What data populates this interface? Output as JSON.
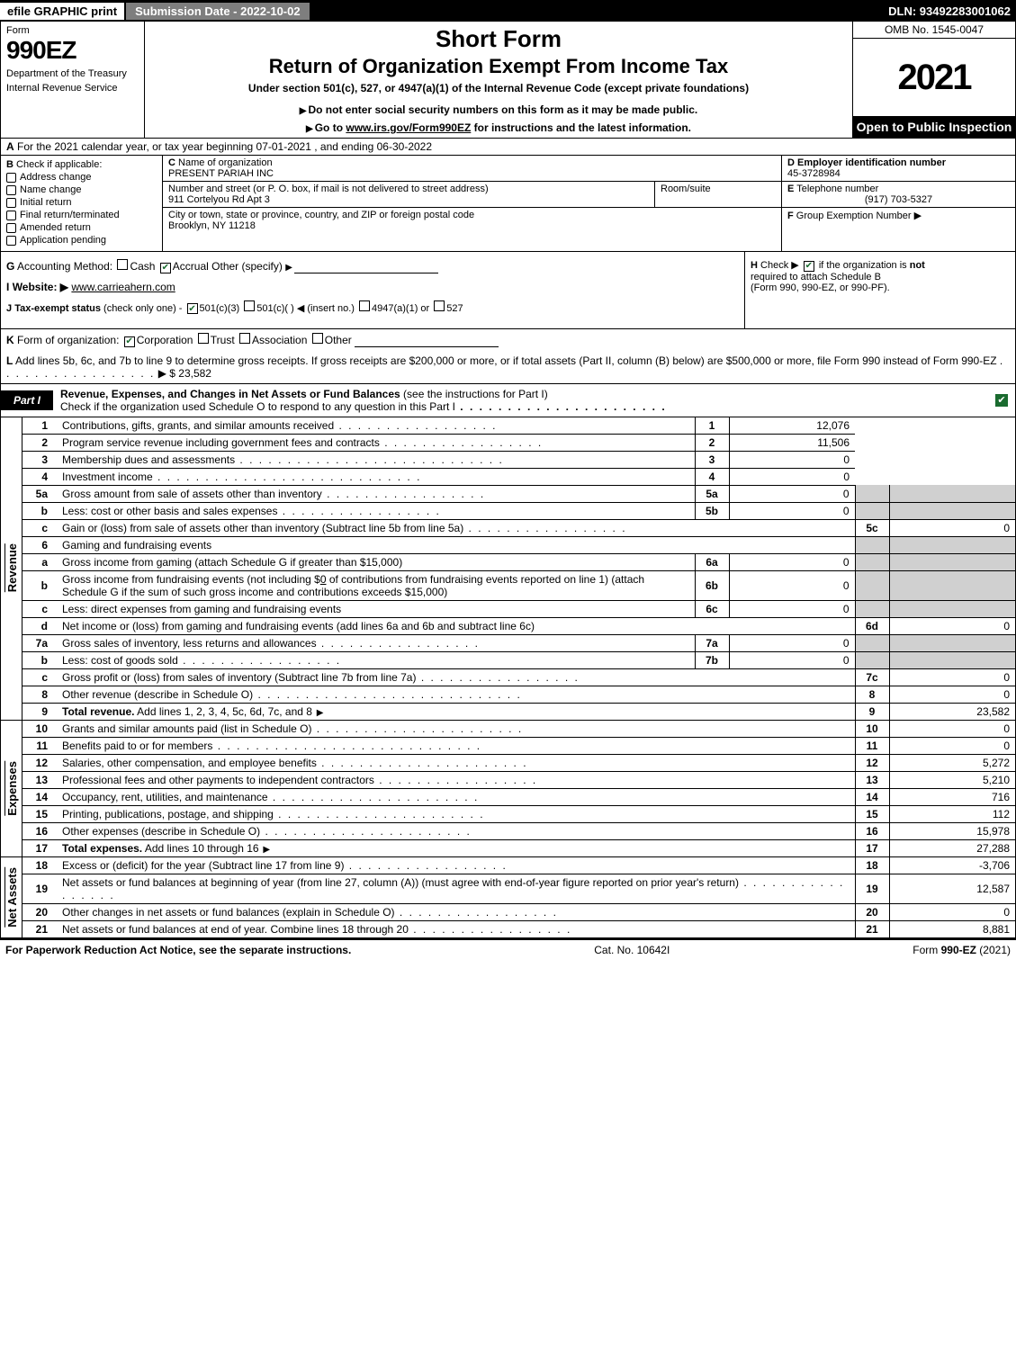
{
  "topbar": {
    "efile": "efile GRAPHIC print",
    "submission": "Submission Date - 2022-10-02",
    "dln": "DLN: 93492283001062"
  },
  "header": {
    "form_label": "Form",
    "form_number": "990EZ",
    "dept1": "Department of the Treasury",
    "dept2": "Internal Revenue Service",
    "short_form": "Short Form",
    "return_title": "Return of Organization Exempt From Income Tax",
    "under_section": "Under section 501(c), 527, or 4947(a)(1) of the Internal Revenue Code (except private foundations)",
    "do_not": "Do not enter social security numbers on this form as it may be made public.",
    "goto_pre": "Go to ",
    "goto_link": "www.irs.gov/Form990EZ",
    "goto_post": " for instructions and the latest information.",
    "omb": "OMB No. 1545-0047",
    "year": "2021",
    "open_to": "Open to Public Inspection"
  },
  "sectionA": {
    "label_A": "A",
    "text": "For the 2021 calendar year, or tax year beginning 07-01-2021 , and ending 06-30-2022"
  },
  "sectionB": {
    "label": "B",
    "check_if": "Check if applicable:",
    "items": [
      "Address change",
      "Name change",
      "Initial return",
      "Final return/terminated",
      "Amended return",
      "Application pending"
    ]
  },
  "sectionC": {
    "label": "C",
    "name_label": "Name of organization",
    "name": "PRESENT PARIAH INC",
    "street_label": "Number and street (or P. O. box, if mail is not delivered to street address)",
    "room_label": "Room/suite",
    "street": "911 Cortelyou Rd Apt 3",
    "city_label": "City or town, state or province, country, and ZIP or foreign postal code",
    "city": "Brooklyn, NY  11218"
  },
  "sectionD": {
    "label": "D",
    "title": "Employer identification number",
    "value": "45-3728984"
  },
  "sectionE": {
    "label": "E",
    "title": "Telephone number",
    "value": "(917) 703-5327"
  },
  "sectionF": {
    "label": "F",
    "title": "Group Exemption Number",
    "arrow": "▶"
  },
  "sectionG": {
    "label": "G",
    "text": "Accounting Method:",
    "opts": [
      "Cash",
      "Accrual",
      "Other (specify)"
    ],
    "checked": "Accrual"
  },
  "sectionH": {
    "label": "H",
    "text1": "Check ▶",
    "text2": "if the organization is ",
    "not": "not",
    "text3": "required to attach Schedule B",
    "text4": "(Form 990, 990-EZ, or 990-PF)."
  },
  "sectionI": {
    "label": "I",
    "title": "Website: ▶",
    "value": "www.carrieahern.com"
  },
  "sectionJ": {
    "label": "J",
    "title": "Tax-exempt status",
    "subtitle": "(check only one) -",
    "opts": [
      "501(c)(3)",
      "501(c)(   ) ◀ (insert no.)",
      "4947(a)(1) or",
      "527"
    ],
    "checked": "501(c)(3)"
  },
  "sectionK": {
    "label": "K",
    "title": "Form of organization:",
    "opts": [
      "Corporation",
      "Trust",
      "Association",
      "Other"
    ],
    "checked": "Corporation"
  },
  "sectionL": {
    "label": "L",
    "text": "Add lines 5b, 6c, and 7b to line 9 to determine gross receipts. If gross receipts are $200,000 or more, or if total assets (Part II, column (B) below) are $500,000 or more, file Form 990 instead of Form 990-EZ",
    "value": "$ 23,582"
  },
  "part1": {
    "tab": "Part I",
    "title": "Revenue, Expenses, and Changes in Net Assets or Fund Balances",
    "subtitle": "(see the instructions for Part I)",
    "check_text": "Check if the organization used Schedule O to respond to any question in this Part I"
  },
  "vert_labels": {
    "revenue": "Revenue",
    "expenses": "Expenses",
    "net_assets": "Net Assets"
  },
  "revenue": [
    {
      "no": "1",
      "desc": "Contributions, gifts, grants, and similar amounts received",
      "numcol": "1",
      "val": "12,076"
    },
    {
      "no": "2",
      "desc": "Program service revenue including government fees and contracts",
      "numcol": "2",
      "val": "11,506"
    },
    {
      "no": "3",
      "desc": "Membership dues and assessments",
      "numcol": "3",
      "val": "0"
    },
    {
      "no": "4",
      "desc": "Investment income",
      "numcol": "4",
      "val": "0"
    }
  ],
  "line5": {
    "a_no": "5a",
    "a_desc": "Gross amount from sale of assets other than inventory",
    "a_sub": "5a",
    "a_val": "0",
    "b_no": "b",
    "b_desc": "Less: cost or other basis and sales expenses",
    "b_sub": "5b",
    "b_val": "0",
    "c_no": "c",
    "c_desc": "Gain or (loss) from sale of assets other than inventory (Subtract line 5b from line 5a)",
    "c_numcol": "5c",
    "c_val": "0"
  },
  "line6": {
    "header_no": "6",
    "header_desc": "Gaming and fundraising events",
    "a_no": "a",
    "a_desc": "Gross income from gaming (attach Schedule G if greater than $15,000)",
    "a_sub": "6a",
    "a_val": "0",
    "b_no": "b",
    "b_desc_pre": "Gross income from fundraising events (not including $",
    "b_fill": "0",
    "b_desc_mid": "of contributions from fundraising events reported on line 1) (attach Schedule G if the sum of such gross income and contributions exceeds $15,000)",
    "b_sub": "6b",
    "b_val": "0",
    "c_no": "c",
    "c_desc": "Less: direct expenses from gaming and fundraising events",
    "c_sub": "6c",
    "c_val": "0",
    "d_no": "d",
    "d_desc": "Net income or (loss) from gaming and fundraising events (add lines 6a and 6b and subtract line 6c)",
    "d_numcol": "6d",
    "d_val": "0"
  },
  "line7": {
    "a_no": "7a",
    "a_desc": "Gross sales of inventory, less returns and allowances",
    "a_sub": "7a",
    "a_val": "0",
    "b_no": "b",
    "b_desc": "Less: cost of goods sold",
    "b_sub": "7b",
    "b_val": "0",
    "c_no": "c",
    "c_desc": "Gross profit or (loss) from sales of inventory (Subtract line 7b from line 7a)",
    "c_numcol": "7c",
    "c_val": "0"
  },
  "line8": {
    "no": "8",
    "desc": "Other revenue (describe in Schedule O)",
    "numcol": "8",
    "val": "0"
  },
  "line9": {
    "no": "9",
    "desc": "Total revenue.",
    "desc2": "Add lines 1, 2, 3, 4, 5c, 6d, 7c, and 8",
    "numcol": "9",
    "val": "23,582"
  },
  "expenses": [
    {
      "no": "10",
      "desc": "Grants and similar amounts paid (list in Schedule O)",
      "numcol": "10",
      "val": "0"
    },
    {
      "no": "11",
      "desc": "Benefits paid to or for members",
      "numcol": "11",
      "val": "0"
    },
    {
      "no": "12",
      "desc": "Salaries, other compensation, and employee benefits",
      "numcol": "12",
      "val": "5,272"
    },
    {
      "no": "13",
      "desc": "Professional fees and other payments to independent contractors",
      "numcol": "13",
      "val": "5,210"
    },
    {
      "no": "14",
      "desc": "Occupancy, rent, utilities, and maintenance",
      "numcol": "14",
      "val": "716"
    },
    {
      "no": "15",
      "desc": "Printing, publications, postage, and shipping",
      "numcol": "15",
      "val": "112"
    },
    {
      "no": "16",
      "desc": "Other expenses (describe in Schedule O)",
      "numcol": "16",
      "val": "15,978"
    }
  ],
  "line17": {
    "no": "17",
    "desc": "Total expenses.",
    "desc2": "Add lines 10 through 16",
    "numcol": "17",
    "val": "27,288"
  },
  "net_assets": [
    {
      "no": "18",
      "desc": "Excess or (deficit) for the year (Subtract line 17 from line 9)",
      "numcol": "18",
      "val": "-3,706"
    }
  ],
  "line19": {
    "no": "19",
    "desc": "Net assets or fund balances at beginning of year (from line 27, column (A)) (must agree with end-of-year figure reported on prior year's return)",
    "numcol": "19",
    "val": "12,587"
  },
  "line20": {
    "no": "20",
    "desc": "Other changes in net assets or fund balances (explain in Schedule O)",
    "numcol": "20",
    "val": "0"
  },
  "line21": {
    "no": "21",
    "desc": "Net assets or fund balances at end of year. Combine lines 18 through 20",
    "numcol": "21",
    "val": "8,881"
  },
  "footer": {
    "left": "For Paperwork Reduction Act Notice, see the separate instructions.",
    "mid": "Cat. No. 10642I",
    "right_pre": "Form ",
    "right_bold": "990-EZ",
    "right_post": " (2021)"
  },
  "colors": {
    "black": "#000000",
    "white": "#ffffff",
    "grey_header": "#7e7e7e",
    "shade": "#d0d0d0",
    "check_green": "#1a6b2f"
  }
}
